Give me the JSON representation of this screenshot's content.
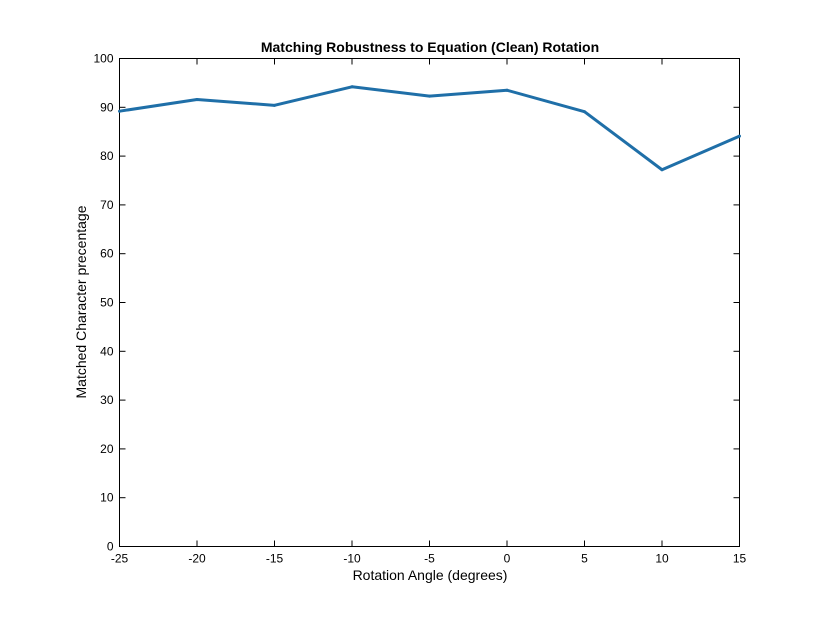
{
  "chart_data": {
    "type": "line",
    "title": "Matching Robustness to Equation (Clean) Rotation",
    "xlabel": "Rotation Angle (degrees)",
    "ylabel": "Matched Character precentage",
    "xlim": [
      -25,
      15
    ],
    "ylim": [
      0,
      100
    ],
    "xticks": [
      -25,
      -20,
      -15,
      -10,
      -5,
      0,
      5,
      10,
      15
    ],
    "xtick_labels": [
      "-25",
      "-20",
      "-15",
      "-10",
      "-5",
      "0",
      "5",
      "10",
      "15"
    ],
    "yticks": [
      0,
      10,
      20,
      30,
      40,
      50,
      60,
      70,
      80,
      90,
      100
    ],
    "ytick_labels": [
      "0",
      "10",
      "20",
      "30",
      "40",
      "50",
      "60",
      "70",
      "80",
      "90",
      "100"
    ],
    "grid": false,
    "series": [
      {
        "color": "#1f6fa8",
        "x": [
          -25,
          -20,
          -15,
          -10,
          -5,
          0,
          5,
          10,
          15
        ],
        "y": [
          89.2,
          91.6,
          90.4,
          94.2,
          92.3,
          93.5,
          89.1,
          77.2,
          84.1
        ]
      }
    ]
  }
}
